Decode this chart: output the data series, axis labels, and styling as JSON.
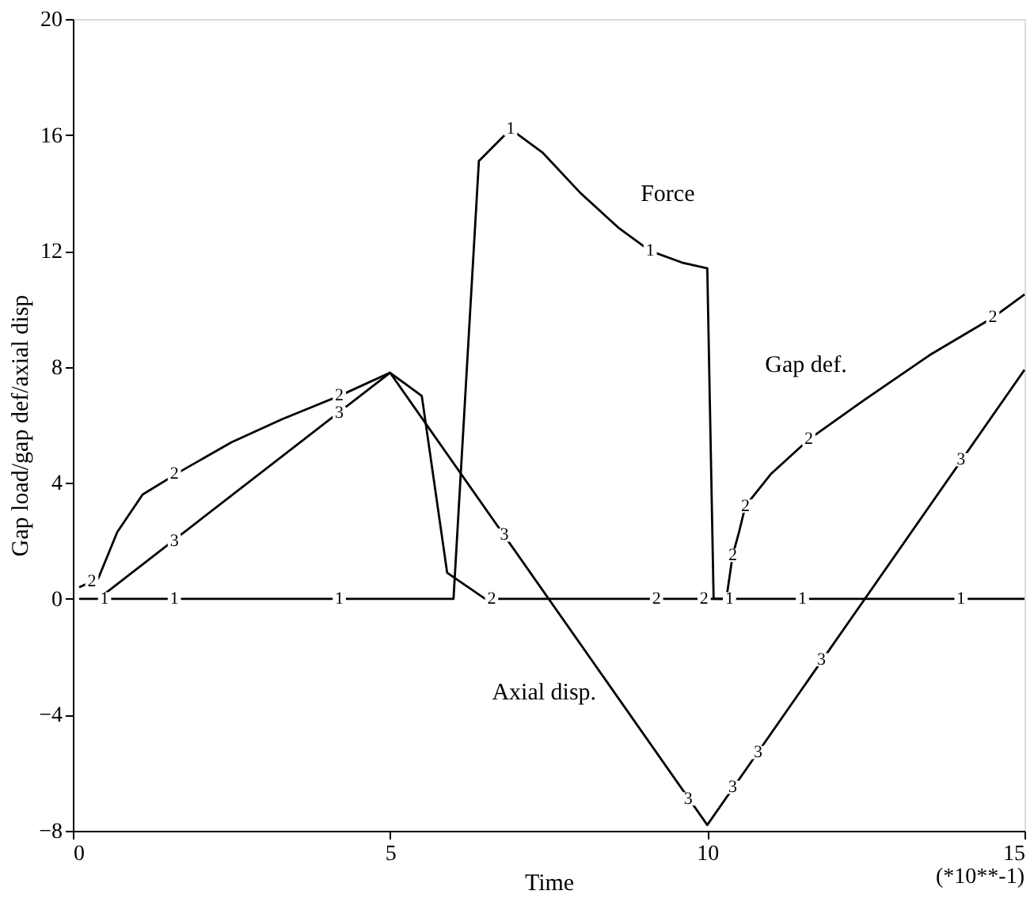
{
  "chart_data": {
    "type": "line",
    "xlabel": "Time",
    "ylabel": "Gap load/gap def/axial disp",
    "xlim": [
      0,
      15
    ],
    "ylim": [
      -8,
      20
    ],
    "xticks": [
      0,
      5,
      10,
      15
    ],
    "yticks": [
      -8,
      -4,
      0,
      4,
      8,
      12,
      16,
      20
    ],
    "grid": false,
    "legend": false,
    "marker": "none",
    "line_style": "solid",
    "series": [
      {
        "color": "#000000",
        "x": [
          0.1,
          6.0,
          6.4,
          6.9,
          7.4,
          8.0,
          8.6,
          9.1,
          9.6,
          10.0,
          10.1,
          15.0
        ],
        "values": [
          0,
          0,
          15.1,
          16.2,
          15.4,
          14.0,
          12.8,
          12.0,
          11.6,
          11.4,
          0,
          0
        ]
      },
      {
        "color": "#000000",
        "x": [
          0.1,
          0.4,
          0.7,
          1.1,
          1.7,
          2.5,
          3.3,
          4.2,
          5.0,
          5.5,
          5.9,
          6.5,
          10.3,
          10.4,
          10.5,
          10.6,
          11.0,
          11.6,
          12.5,
          13.5,
          14.5,
          15.0
        ],
        "values": [
          0.4,
          0.7,
          2.3,
          3.6,
          4.4,
          5.4,
          6.2,
          7.0,
          7.8,
          7.0,
          0.9,
          0,
          0,
          1.5,
          2.3,
          3.2,
          4.3,
          5.5,
          6.9,
          8.4,
          9.7,
          10.5
        ]
      },
      {
        "color": "#000000",
        "x": [
          0.4,
          5.0,
          10.0,
          15.0
        ],
        "values": [
          0,
          7.8,
          -7.8,
          7.9
        ]
      }
    ],
    "annotations": [
      {
        "text": "Force",
        "x": 8.6,
        "y": 12.8
      },
      {
        "text": "Gap def.",
        "x": 12.5,
        "y": 6.9
      },
      {
        "text": "Axial disp.",
        "x": 8.5,
        "y": -3.1
      },
      "(*10**-1)",
      {
        "text": "1",
        "x": 0.5,
        "y": 0
      },
      {
        "text": "1",
        "x": 1.6,
        "y": 0
      },
      {
        "text": "1",
        "x": 4.2,
        "y": 0
      },
      {
        "text": "1",
        "x": 6.9,
        "y": 16.2
      },
      {
        "text": "1",
        "x": 9.1,
        "y": 12.0
      },
      {
        "text": "1",
        "x": 10.35,
        "y": 0
      },
      {
        "text": "1",
        "x": 11.5,
        "y": 0
      },
      {
        "text": "1",
        "x": 14.0,
        "y": 0
      },
      {
        "text": "2",
        "x": 0.3,
        "y": 0.6
      },
      {
        "text": "2",
        "x": 1.6,
        "y": 4.3
      },
      {
        "text": "2",
        "x": 4.2,
        "y": 7.0
      },
      {
        "text": "2",
        "x": 6.6,
        "y": 0
      },
      {
        "text": "2",
        "x": 9.2,
        "y": 0
      },
      {
        "text": "2",
        "x": 9.95,
        "y": 0
      },
      {
        "text": "2",
        "x": 10.4,
        "y": 1.5
      },
      {
        "text": "2",
        "x": 10.6,
        "y": 3.2
      },
      {
        "text": "2",
        "x": 11.6,
        "y": 5.5
      },
      {
        "text": "2",
        "x": 14.5,
        "y": 9.7
      },
      {
        "text": "3",
        "x": 1.6,
        "y": 2.0
      },
      {
        "text": "3",
        "x": 4.2,
        "y": 6.4
      },
      {
        "text": "3",
        "x": 6.8,
        "y": 2.2
      },
      {
        "text": "3",
        "x": 9.7,
        "y": -6.9
      },
      {
        "text": "3",
        "x": 10.4,
        "y": -6.5
      },
      {
        "text": "3",
        "x": 10.8,
        "y": -5.3
      },
      {
        "text": "3",
        "x": 11.8,
        "y": -2.1
      },
      {
        "text": "3",
        "x": 14.0,
        "y": 4.8
      }
    ]
  }
}
